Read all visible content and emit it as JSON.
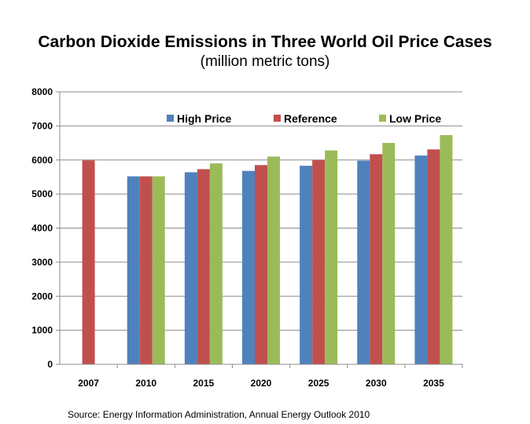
{
  "title": "Carbon Dioxide Emissions in Three World Oil Price Cases",
  "subtitle": "(million metric tons)",
  "source": "Source: Energy Information Administration, Annual Energy Outlook 2010",
  "chart_data": {
    "type": "bar",
    "categories": [
      "2007",
      "2010",
      "2015",
      "2020",
      "2025",
      "2030",
      "2035"
    ],
    "series": [
      {
        "name": "High Price",
        "color": "#4F81BD",
        "values": [
          null,
          5520,
          5640,
          5680,
          5830,
          5980,
          6130
        ]
      },
      {
        "name": "Reference",
        "color": "#C0504D",
        "values": [
          5990,
          5520,
          5730,
          5850,
          6000,
          6170,
          6310
        ]
      },
      {
        "name": "Low Price",
        "color": "#9BBB59",
        "values": [
          null,
          5520,
          5900,
          6100,
          6280,
          6500,
          6730
        ]
      }
    ],
    "ylim": [
      0,
      8000
    ],
    "yticks": [
      0,
      1000,
      2000,
      3000,
      4000,
      5000,
      6000,
      7000,
      8000
    ],
    "grid": true,
    "legend": "top"
  }
}
